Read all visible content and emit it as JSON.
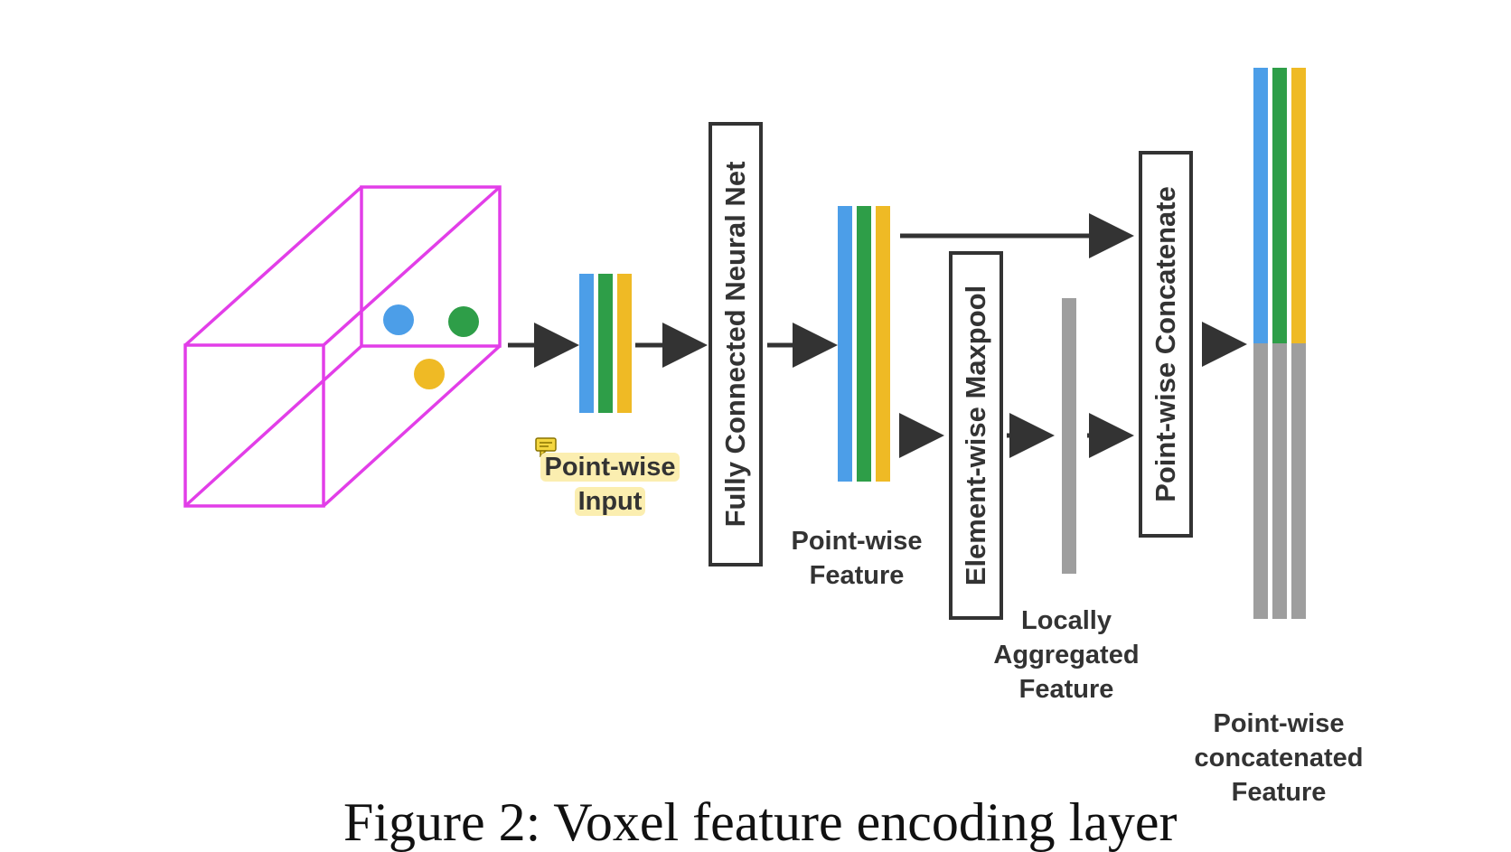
{
  "colors": {
    "cube": "#e23ee8",
    "blue": "#4c9ee8",
    "green": "#2e9e48",
    "yellow": "#efba25",
    "gray": "#9e9e9e",
    "arrow": "#333333",
    "highlight": "#fbeeb0"
  },
  "labels": {
    "pointwise_input_line1": "Point-wise",
    "pointwise_input_line2": "Input",
    "fcn": "Fully Connected Neural Net",
    "pointwise_feature_line1": "Point-wise",
    "pointwise_feature_line2": "Feature",
    "maxpool": "Element-wise Maxpool",
    "local_line1": "Locally",
    "local_line2": "Aggregated",
    "local_line3": "Feature",
    "concat": "Point-wise Concatenate",
    "concat_feature_line1": "Point-wise",
    "concat_feature_line2": "concatenated",
    "concat_feature_line3": "Feature"
  },
  "caption": "Figure 2: Voxel feature encoding layer",
  "icons": {
    "comment": "comment-icon"
  }
}
